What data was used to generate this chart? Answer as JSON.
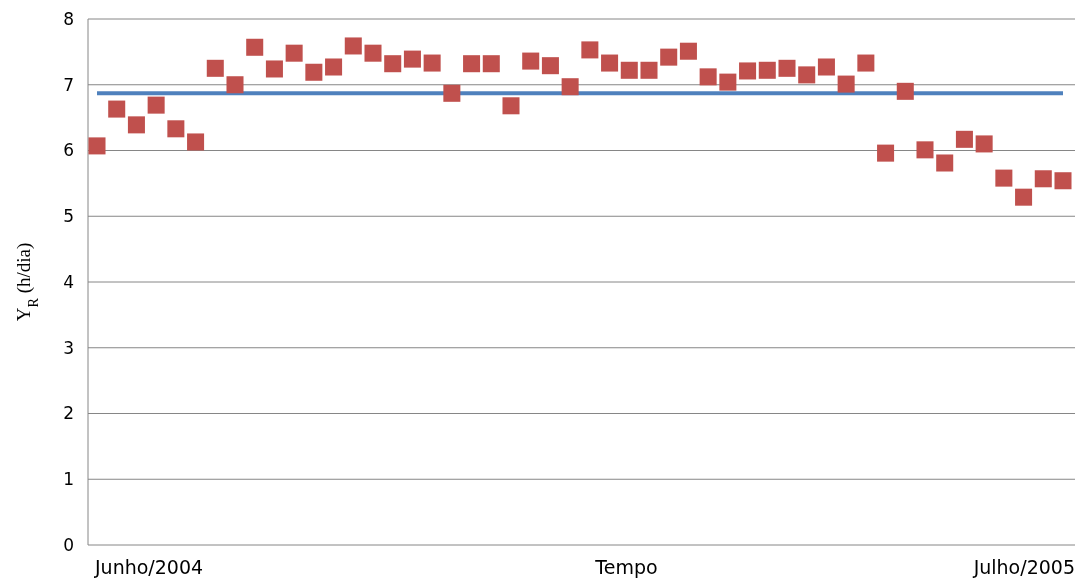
{
  "chart_data": {
    "type": "scatter",
    "ylabel": "Y$_{R}$ (h/dia)",
    "xlabel": "Tempo",
    "categories": [
      null,
      null,
      null,
      null,
      null,
      null,
      null,
      null,
      null,
      null,
      null,
      null,
      null,
      null,
      null,
      null,
      null,
      null,
      null,
      null,
      null,
      null,
      null,
      null,
      null,
      null,
      null,
      null,
      null,
      null,
      null,
      null,
      null,
      null,
      null,
      null,
      null,
      null,
      null,
      null,
      null,
      null,
      null,
      null,
      null,
      null,
      null,
      null,
      null,
      null
    ],
    "series": [
      {
        "color": "#c0504d",
        "values": [
          6.07,
          6.63,
          6.39,
          6.69,
          6.33,
          6.13,
          7.25,
          7.0,
          7.57,
          7.24,
          7.48,
          7.19,
          7.27,
          7.59,
          7.48,
          7.32,
          7.39,
          7.33,
          6.87,
          7.32,
          7.32,
          6.68,
          7.36,
          7.29,
          6.97,
          7.53,
          7.33,
          7.22,
          7.22,
          7.42,
          7.51,
          7.12,
          7.04,
          7.21,
          7.22,
          7.25,
          7.15,
          7.27,
          7.01,
          7.33,
          5.96,
          6.9,
          6.01,
          5.81,
          6.17,
          6.1,
          5.58,
          5.29,
          5.57,
          5.54
        ]
      }
    ],
    "ref_lines": [
      {
        "axis": "y",
        "value": 6.87,
        "color": "#4f81bd"
      }
    ],
    "annotations": [
      "Junho/2004",
      "Julho/2005"
    ],
    "ylim": [
      0,
      8
    ],
    "yticks": [
      0,
      1,
      2,
      3,
      4,
      5,
      6,
      7,
      8
    ],
    "grid": "y",
    "marker": "square"
  }
}
